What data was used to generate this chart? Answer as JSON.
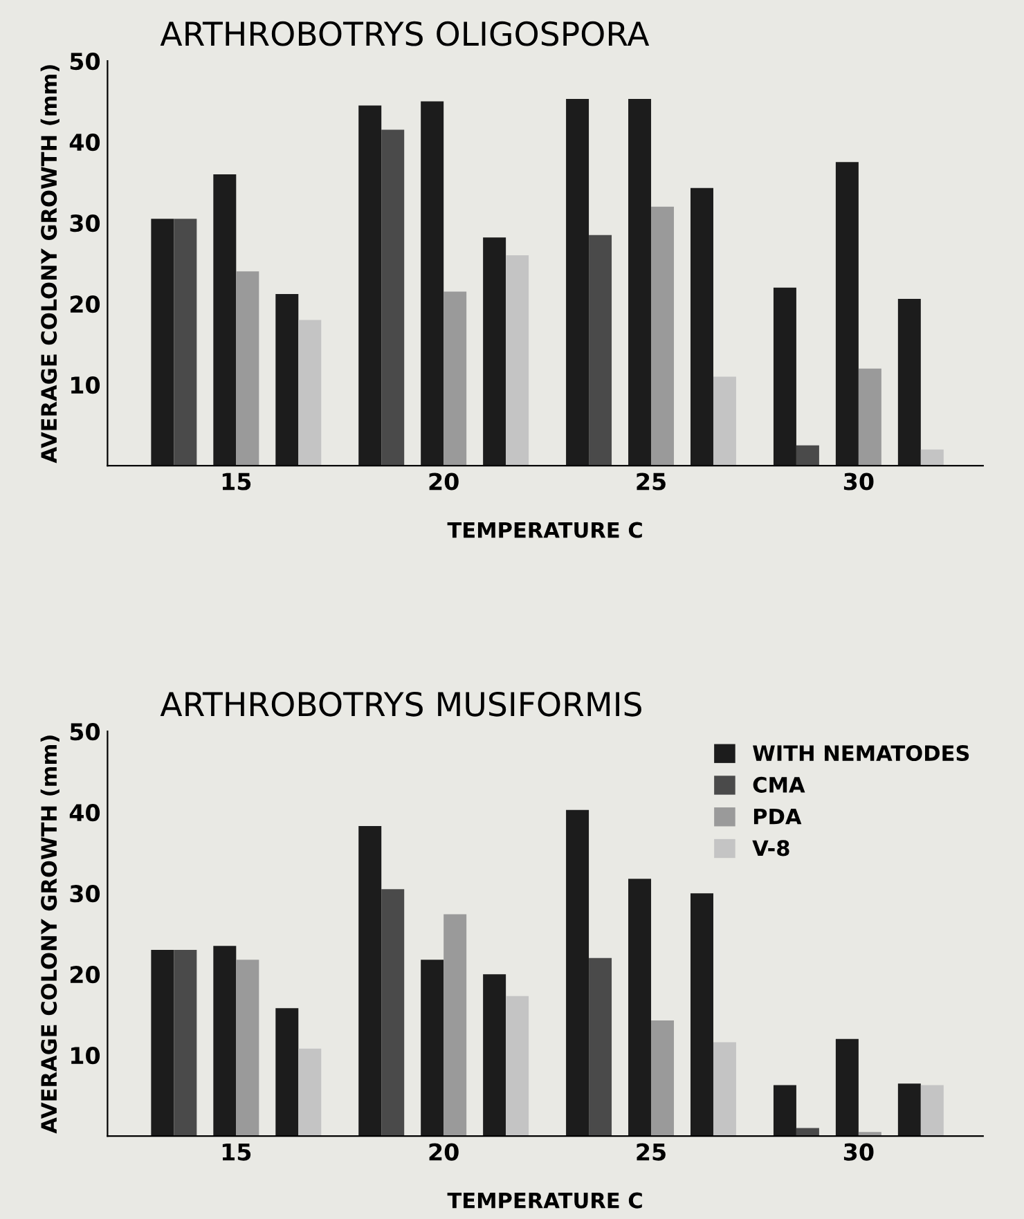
{
  "chart_data": [
    {
      "type": "bar",
      "title": "ARTHROBOTRYS OLIGOSPORA",
      "xlabel": "TEMPERATURE C",
      "ylabel": "AVERAGE COLONY GROWTH (mm)",
      "categories": [
        "15",
        "20",
        "25",
        "30"
      ],
      "ylim": [
        0,
        50
      ],
      "yticks": [
        10,
        20,
        30,
        40,
        50
      ],
      "grid": false,
      "series": [
        {
          "color": "#1c1c1c",
          "values": [
            30.5,
            44.5,
            45.3,
            22
          ]
        },
        {
          "color": "#4a4a4a",
          "values": [
            30.5,
            41.5,
            28.5,
            2.5
          ]
        },
        {
          "color": "#1c1c1c",
          "values": [
            36,
            45,
            45.3,
            37.5
          ]
        },
        {
          "color": "#9a9a9a",
          "values": [
            24,
            21.5,
            32,
            12
          ]
        },
        {
          "color": "#1c1c1c",
          "values": [
            21.2,
            28.2,
            34.3,
            20.6
          ]
        },
        {
          "color": "#c4c4c4",
          "values": [
            18,
            26,
            11,
            2
          ]
        }
      ]
    },
    {
      "type": "bar",
      "title": "ARTHROBOTRYS MUSIFORMIS",
      "xlabel": "TEMPERATURE C",
      "ylabel": "AVERAGE COLONY GROWTH (mm)",
      "categories": [
        "15",
        "20",
        "25",
        "30"
      ],
      "ylim": [
        0,
        50
      ],
      "yticks": [
        10,
        20,
        30,
        40,
        50
      ],
      "grid": false,
      "legend": "top right",
      "series": [
        {
          "name": "WITH NEMATODES",
          "color": "#1c1c1c",
          "values": [
            23,
            38.3,
            40.3,
            6.3
          ]
        },
        {
          "name": "CMA",
          "color": "#4a4a4a",
          "values": [
            23,
            30.5,
            22,
            1
          ]
        },
        {
          "color": "#1c1c1c",
          "values": [
            23.5,
            21.8,
            31.8,
            12
          ]
        },
        {
          "name": "PDA",
          "color": "#9a9a9a",
          "values": [
            21.8,
            27.4,
            14.3,
            0.5
          ]
        },
        {
          "color": "#1c1c1c",
          "values": [
            15.8,
            20,
            30,
            6.5
          ]
        },
        {
          "name": "V-8",
          "color": "#c4c4c4",
          "values": [
            10.8,
            17.3,
            11.6,
            6.3
          ]
        }
      ]
    }
  ]
}
